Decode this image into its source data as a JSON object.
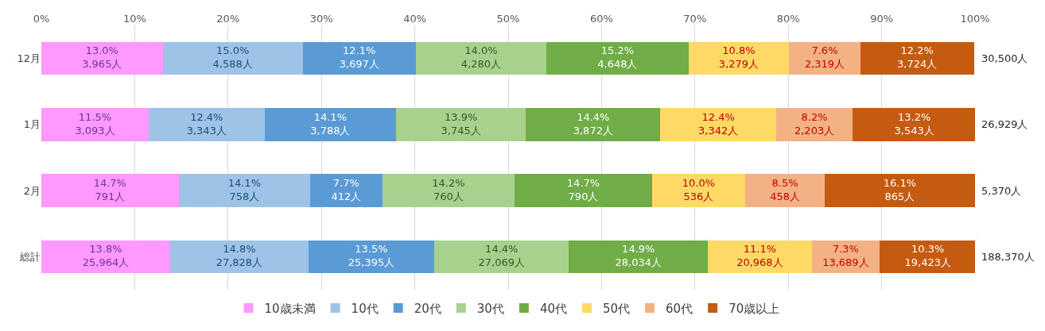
{
  "chart_data": {
    "type": "bar",
    "orientation": "horizontal",
    "stacked": true,
    "categories": [
      "12月",
      "1月",
      "2月",
      "総計"
    ],
    "xlim": [
      0,
      100
    ],
    "xticks": [
      {
        "value": 0,
        "label": "0%"
      },
      {
        "value": 10,
        "label": "10%"
      },
      {
        "value": 20,
        "label": "20%"
      },
      {
        "value": 30,
        "label": "30%"
      },
      {
        "value": 40,
        "label": "40%"
      },
      {
        "value": 50,
        "label": "50%"
      },
      {
        "value": 60,
        "label": "60%"
      },
      {
        "value": 70,
        "label": "70%"
      },
      {
        "value": 80,
        "label": "80%"
      },
      {
        "value": 90,
        "label": "90%"
      },
      {
        "value": 100,
        "label": "100%"
      }
    ],
    "grid": "x",
    "legend": "bottom",
    "annotations": [
      "30,500人",
      "26,929人",
      "5,370人",
      "188,370人"
    ],
    "series": [
      {
        "name": "10歳未満",
        "color": "#ff99ff",
        "values": [
          13.0,
          11.5,
          14.7,
          13.8
        ],
        "value_labels": [
          "13.0%\n3,965人",
          "11.5%\n3,093人",
          "14.7%\n791人",
          "13.8%\n25,964人"
        ]
      },
      {
        "name": "10代",
        "color": "#9dc3e6",
        "values": [
          15.0,
          12.4,
          14.1,
          14.8
        ],
        "value_labels": [
          "15.0%\n4,588人",
          "12.4%\n3,343人",
          "14.1%\n758人",
          "14.8%\n27,828人"
        ]
      },
      {
        "name": "20代",
        "color": "#5b9bd5",
        "values": [
          12.1,
          14.1,
          7.7,
          13.5
        ],
        "value_labels": [
          "12.1%\n3,697人",
          "14.1%\n3,788人",
          "7.7%\n412人",
          "13.5%\n25,395人"
        ]
      },
      {
        "name": "30代",
        "color": "#a9d18e",
        "values": [
          14.0,
          13.9,
          14.2,
          14.4
        ],
        "value_labels": [
          "14.0%\n4,280人",
          "13.9%\n3,745人",
          "14.2%\n760人",
          "14.4%\n27,069人"
        ]
      },
      {
        "name": "40代",
        "color": "#70ad47",
        "values": [
          15.2,
          14.4,
          14.7,
          14.9
        ],
        "value_labels": [
          "15.2%\n4,648人",
          "14.4%\n3,872人",
          "14.7%\n790人",
          "14.9%\n28,034人"
        ]
      },
      {
        "name": "50代",
        "color": "#ffd966",
        "values": [
          10.8,
          12.4,
          10.0,
          11.1
        ],
        "value_labels": [
          "10.8%\n3,279人",
          "12.4%\n3,342人",
          "10.0%\n536人",
          "11.1%\n20,968人"
        ]
      },
      {
        "name": "60代",
        "color": "#f4b183",
        "values": [
          7.6,
          8.2,
          8.5,
          7.3
        ],
        "value_labels": [
          "7.6%\n2,319人",
          "8.2%\n2,203人",
          "8.5%\n458人",
          "7.3%\n13,689人"
        ]
      },
      {
        "name": "70歳以上",
        "color": "#c55a11",
        "values": [
          12.2,
          13.2,
          16.1,
          10.3
        ],
        "value_labels": [
          "12.2%\n3,724人",
          "13.2%\n3,543人",
          "16.1%\n865人",
          "10.3%\n19,423人"
        ]
      }
    ]
  }
}
